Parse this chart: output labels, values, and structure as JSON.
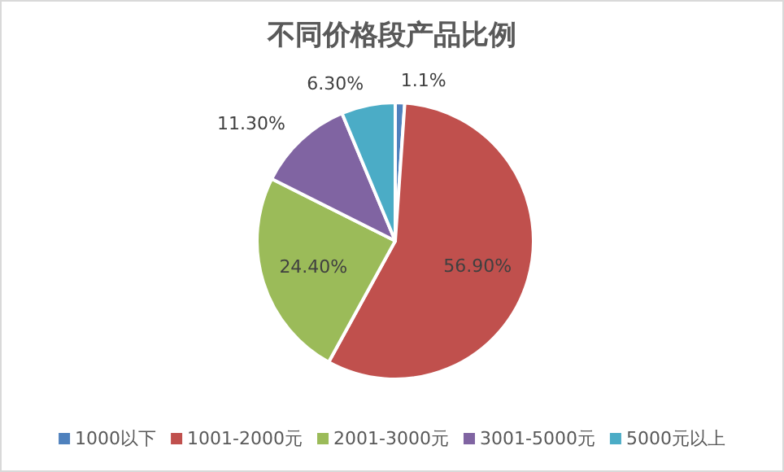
{
  "chart_data": {
    "type": "pie",
    "title": "不同价格段产品比例",
    "categories": [
      "1000以下",
      "1001-2000元",
      "2001-3000元",
      "3001-5000元",
      "5000元以上"
    ],
    "values": [
      1.1,
      56.9,
      24.4,
      11.3,
      6.3
    ],
    "value_labels": [
      "1.1%",
      "56.90%",
      "24.40%",
      "11.30%",
      "6.30%"
    ],
    "colors": [
      "#4f81bd",
      "#c0504d",
      "#9bbb59",
      "#8064a2",
      "#4bacc6"
    ],
    "legend": "bottom"
  }
}
